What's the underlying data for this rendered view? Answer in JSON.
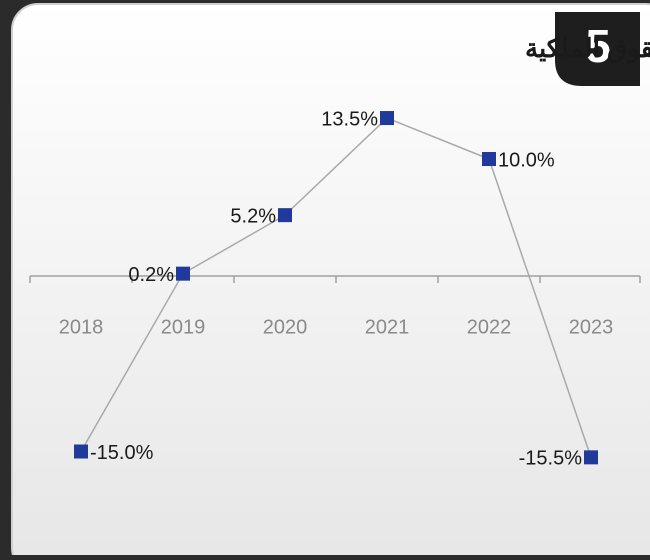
{
  "badge": "5",
  "chart_data": {
    "type": "line",
    "title": "معدل العائد على حقوق الملكية",
    "categories": [
      "2018",
      "2019",
      "2020",
      "2021",
      "2022",
      "2023"
    ],
    "series": [
      {
        "color": "#1f3a9a",
        "values": [
          -15.0,
          0.2,
          5.2,
          13.5,
          10.0,
          -15.5
        ],
        "value_labels": [
          "-15.0%",
          "0.2%",
          "5.2%",
          "13.5%",
          "10.0%",
          "-15.5%"
        ]
      }
    ],
    "line_color": "#a9a9a9",
    "ylim": [
      -20,
      20
    ]
  }
}
